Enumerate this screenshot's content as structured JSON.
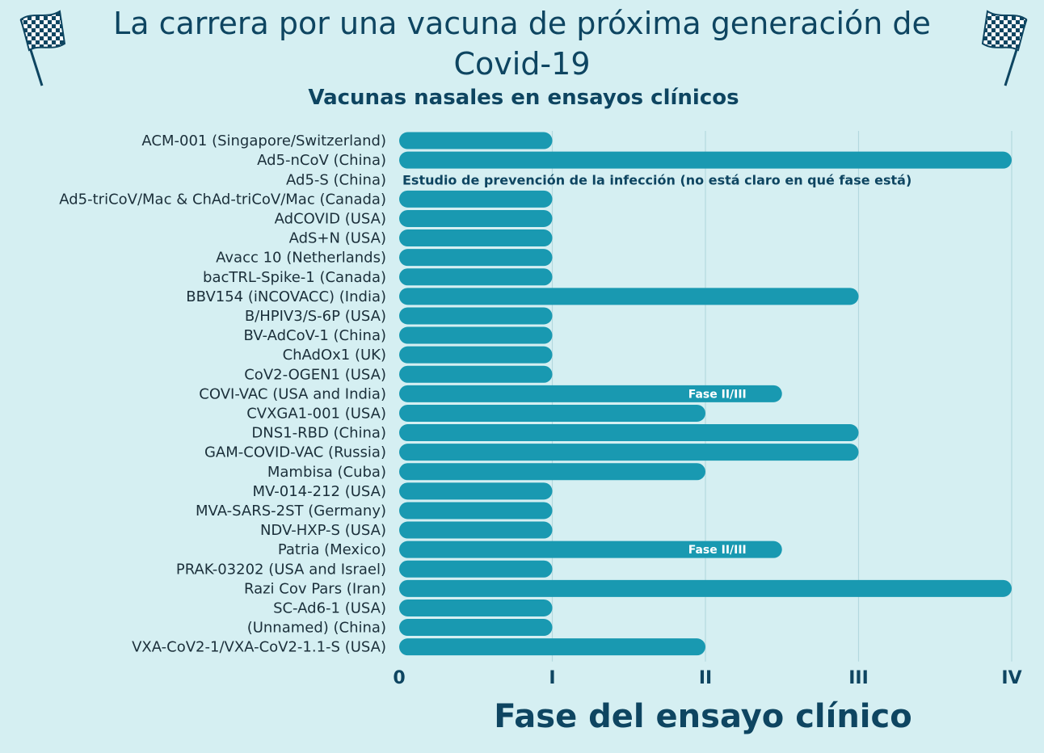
{
  "title": "La carrera por una vacuna de próxima generación de Covid-19",
  "subtitle": "Vacunas nasales en ensayos clínicos",
  "colors": {
    "background": "#d5eff2",
    "bar": "#1999b1",
    "text": "#0e4561",
    "grid": "#b4d9df"
  },
  "icons": {
    "left": "checkered-flag-icon",
    "right": "checkered-flag-icon"
  },
  "chart_data": {
    "type": "bar",
    "orientation": "horizontal",
    "xlabel": "Fase del ensayo clínico",
    "ylabel": "",
    "xlim": [
      0,
      4
    ],
    "ticks": [
      {
        "value": 0,
        "label": "0"
      },
      {
        "value": 1,
        "label": "I"
      },
      {
        "value": 2,
        "label": "II"
      },
      {
        "value": 3,
        "label": "III"
      },
      {
        "value": 4,
        "label": "IV"
      }
    ],
    "grid": true,
    "categories": [
      "ACM-001 (Singapore/Switzerland)",
      "Ad5-nCoV (China)",
      "Ad5-S (China)",
      "Ad5-triCoV/Mac & ChAd-triCoV/Mac (Canada)",
      "AdCOVID (USA)",
      "AdS+N (USA)",
      "Avacc 10 (Netherlands)",
      "bacTRL-Spike-1 (Canada)",
      "BBV154 (iNCOVACC) (India)",
      "B/HPIV3/S-6P (USA)",
      "BV-AdCoV-1 (China)",
      "ChAdOx1 (UK)",
      "CoV2-OGEN1 (USA)",
      "COVI-VAC (USA and India)",
      "CVXGA1-001 (USA)",
      "DNS1-RBD (China)",
      "GAM-COVID-VAC (Russia)",
      "Mambisa (Cuba)",
      "MV-014-212 (USA)",
      "MVA-SARS-2ST (Germany)",
      "NDV-HXP-S (USA)",
      "Patria (Mexico)",
      "PRAK-03202 (USA and Israel)",
      "Razi Cov Pars (Iran)",
      "SC-Ad6-1 (USA)",
      "(Unnamed) (China)",
      "VXA-CoV2-1/VXA-CoV2-1.1-S (USA)"
    ],
    "values": [
      1,
      4,
      null,
      1,
      1,
      1,
      1,
      1,
      3,
      1,
      1,
      1,
      1,
      2.5,
      2,
      3,
      3,
      2,
      1,
      1,
      1,
      2.5,
      1,
      4,
      1,
      1,
      2
    ],
    "annotations": [
      {
        "category_index": 2,
        "text": "Estudio de prevención de la infección (no está claro en qué fase está)"
      },
      {
        "category_index": 13,
        "text": "Fase II/III"
      },
      {
        "category_index": 21,
        "text": "Fase II/III"
      }
    ]
  }
}
